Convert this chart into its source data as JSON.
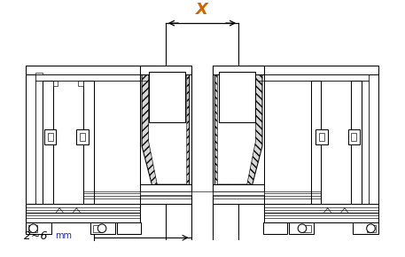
{
  "bg_color": "#ffffff",
  "line_color": "#000000",
  "dim_color_x": "#cc6600",
  "dim_color_mm": "#2222bb",
  "x_label": "X",
  "mm_label_1": "2~6 ",
  "mm_label_2": "mm",
  "figsize": [
    4.57,
    2.9
  ],
  "dpi": 100,
  "lw": 0.75,
  "lw2": 0.45
}
